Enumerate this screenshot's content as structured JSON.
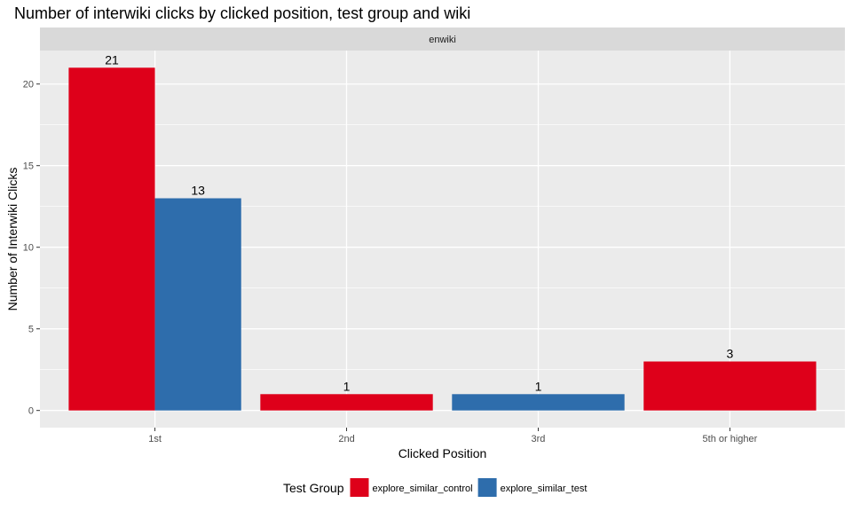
{
  "chart_data": {
    "type": "bar",
    "title": "Number of interwiki clicks by clicked position, test group and wiki",
    "facet_label": "enwiki",
    "xlabel": "Clicked Position",
    "ylabel": "Number of Interwiki Clicks",
    "categories": [
      "1st",
      "2nd",
      "3rd",
      "5th or higher"
    ],
    "yticks": [
      0,
      5,
      10,
      15,
      20
    ],
    "ylim": [
      -1.05,
      22.05
    ],
    "grid": true,
    "legend_position": "bottom",
    "legend_title": "Test Group",
    "series": [
      {
        "name": "explore_similar_control",
        "color": "#de001a",
        "values": [
          21,
          1,
          null,
          3
        ]
      },
      {
        "name": "explore_similar_test",
        "color": "#2e6dac",
        "values": [
          13,
          null,
          1,
          null
        ]
      }
    ]
  }
}
